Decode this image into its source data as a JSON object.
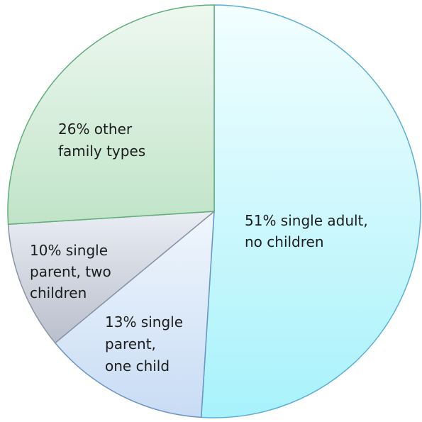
{
  "chart_data": {
    "type": "pie",
    "title": "",
    "start": "12 o'clock",
    "direction": "clockwise",
    "slices": [
      {
        "name": "single adult, no children",
        "value": 51,
        "label_lines": [
          "51% single adult,",
          "no children"
        ],
        "color_light": "#f3feff",
        "color_dark": "#a8f2fb",
        "stroke": "#5aaed8"
      },
      {
        "name": "single parent, one child",
        "value": 13,
        "label_lines": [
          "13% single",
          "parent,",
          "one child"
        ],
        "color_light": "#f0f6fd",
        "color_dark": "#c8dcf4",
        "stroke": "#6c93c4"
      },
      {
        "name": "single parent, two children",
        "value": 10,
        "label_lines": [
          "10% single",
          "parent, two",
          "children"
        ],
        "color_light": "#eaedf4",
        "color_dark": "#b9bfcc",
        "stroke": "#8a93a4"
      },
      {
        "name": "other family types",
        "value": 26,
        "label_lines": [
          "26% other",
          "family types"
        ],
        "color_light": "#eef8f0",
        "color_dark": "#c0e4c8",
        "stroke": "#5fae7a"
      }
    ]
  }
}
